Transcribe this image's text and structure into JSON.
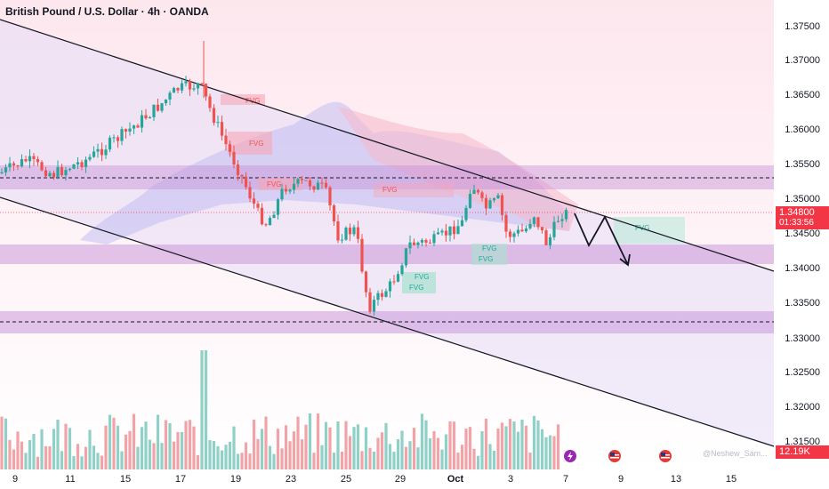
{
  "header": {
    "title": "British Pound / U.S. Dollar · 4h · OANDA"
  },
  "price_axis": {
    "ticks": [
      "1.37500",
      "1.37000",
      "1.36500",
      "1.36000",
      "1.35500",
      "1.35000",
      "1.34500",
      "1.34000",
      "1.33500",
      "1.33000",
      "1.32500",
      "1.32000",
      "1.31500"
    ]
  },
  "time_axis": {
    "ticks": [
      "9",
      "11",
      "15",
      "17",
      "19",
      "23",
      "25",
      "29",
      "Oct",
      "3",
      "7",
      "9",
      "13",
      "15"
    ]
  },
  "current_price": {
    "value": "1.34800",
    "countdown": "01:33:56"
  },
  "volume_badge": {
    "value": "12.19K"
  },
  "fvg_labels": [
    "FVG",
    "FVG",
    "FVG",
    "FVG",
    "FVG",
    "FVG",
    "FVG",
    "FVG",
    "FVG"
  ],
  "watermark": "@Neshew_Sam...",
  "colors": {
    "bull": "#26a69a",
    "bear": "#ef5350",
    "channel": "#131722",
    "zone": "#c890d8",
    "badge": "#f23645"
  },
  "event_icons": [
    "lightning-icon",
    "us-flag-icon",
    "us-flag-icon"
  ]
}
